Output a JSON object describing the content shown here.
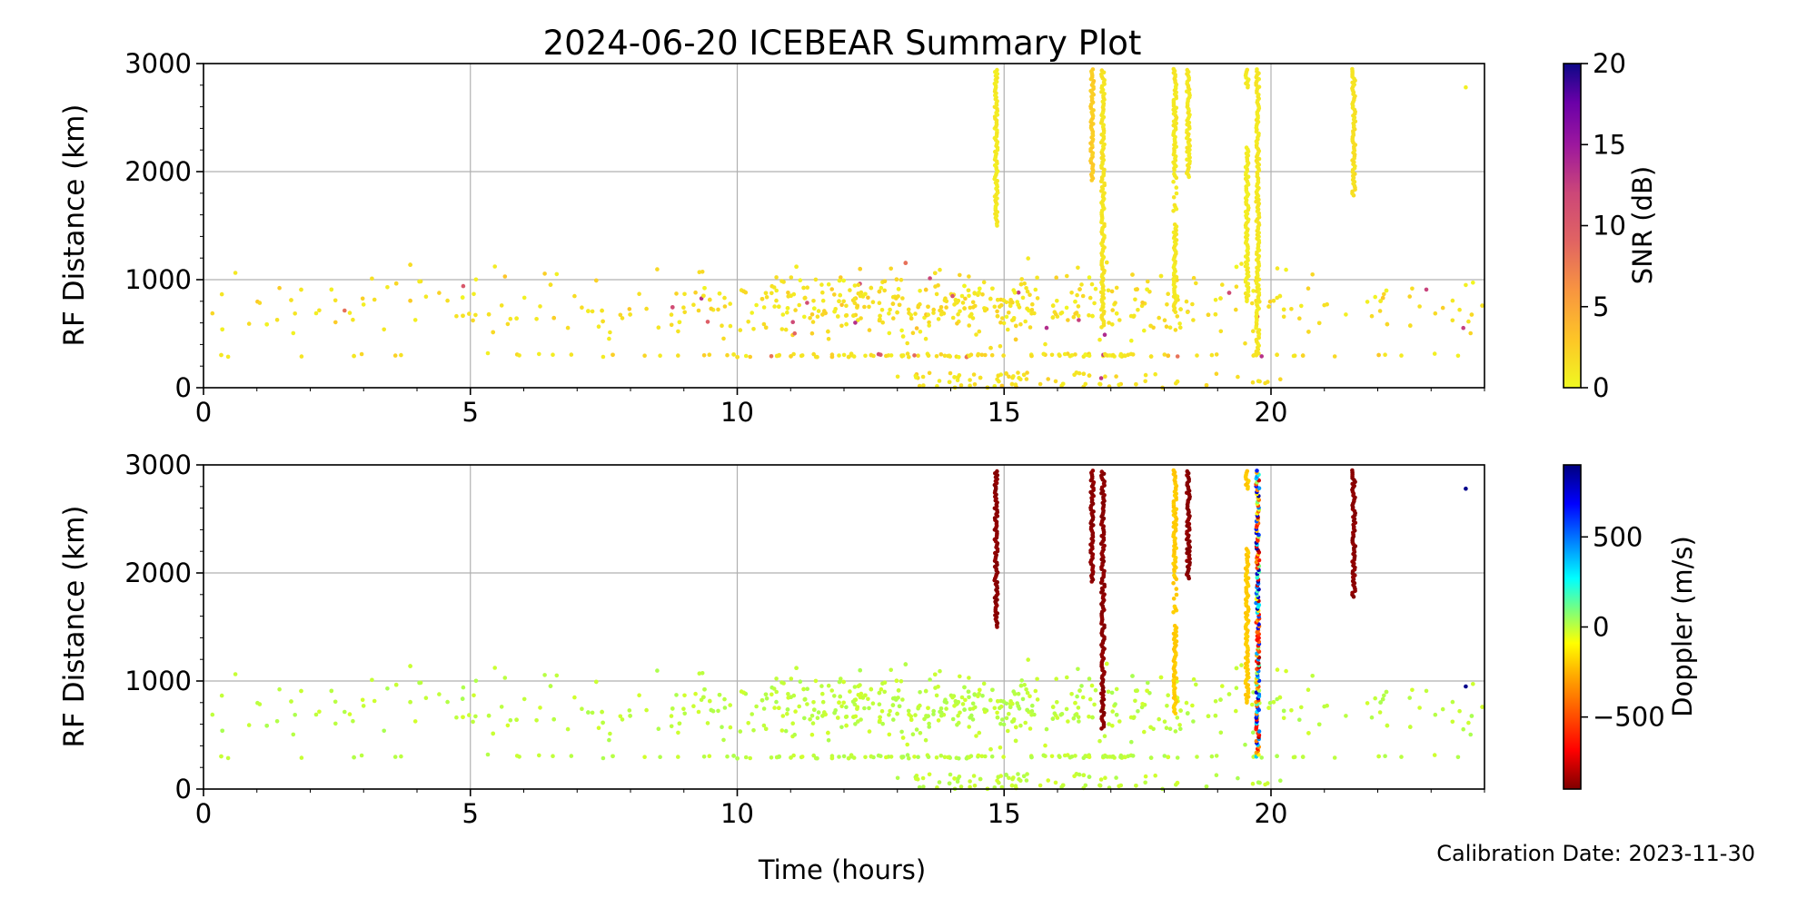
{
  "title": "2024-06-20 ICEBEAR Summary Plot",
  "calibration_text": "Calibration Date: 2023-11-30",
  "colors": {
    "background": "#ffffff",
    "grid": "#b0b0b0",
    "doppler_neutral": "#7dff7a"
  },
  "chart_data": [
    {
      "type": "scatter",
      "ylabel": "RF Distance (km)",
      "xlabel": "",
      "xlim": [
        0,
        24
      ],
      "ylim": [
        0,
        3000
      ],
      "xticks": [
        "0",
        "5",
        "10",
        "15",
        "20"
      ],
      "yticks": [
        "0",
        "1000",
        "2000",
        "3000"
      ],
      "grid": true,
      "color_variable": "SNR",
      "colorbar": {
        "label": "SNR (dB)",
        "range": [
          0,
          20
        ],
        "ticks": [
          "0",
          "5",
          "10",
          "15",
          "20"
        ],
        "colormap": "plasma_r"
      },
      "vertical_streaks_hours": [
        14.85,
        16.65,
        16.85,
        18.2,
        18.45,
        19.55,
        19.75,
        21.55
      ]
    },
    {
      "type": "scatter",
      "ylabel": "RF Distance (km)",
      "xlabel": "Time (hours)",
      "xlim": [
        0,
        24
      ],
      "ylim": [
        0,
        3000
      ],
      "xticks": [
        "0",
        "5",
        "10",
        "15",
        "20"
      ],
      "yticks": [
        "0",
        "1000",
        "2000",
        "3000"
      ],
      "grid": true,
      "color_variable": "Doppler",
      "colorbar": {
        "label": "Doppler (m/s)",
        "range": [
          -900,
          900
        ],
        "ticks": [
          "500",
          "0",
          "−500"
        ],
        "tick_values": [
          500,
          0,
          -500
        ],
        "colormap": "jet_r"
      },
      "vertical_streaks_hours": [
        14.85,
        16.65,
        16.85,
        18.2,
        18.45,
        19.55,
        19.75,
        21.55
      ]
    }
  ]
}
